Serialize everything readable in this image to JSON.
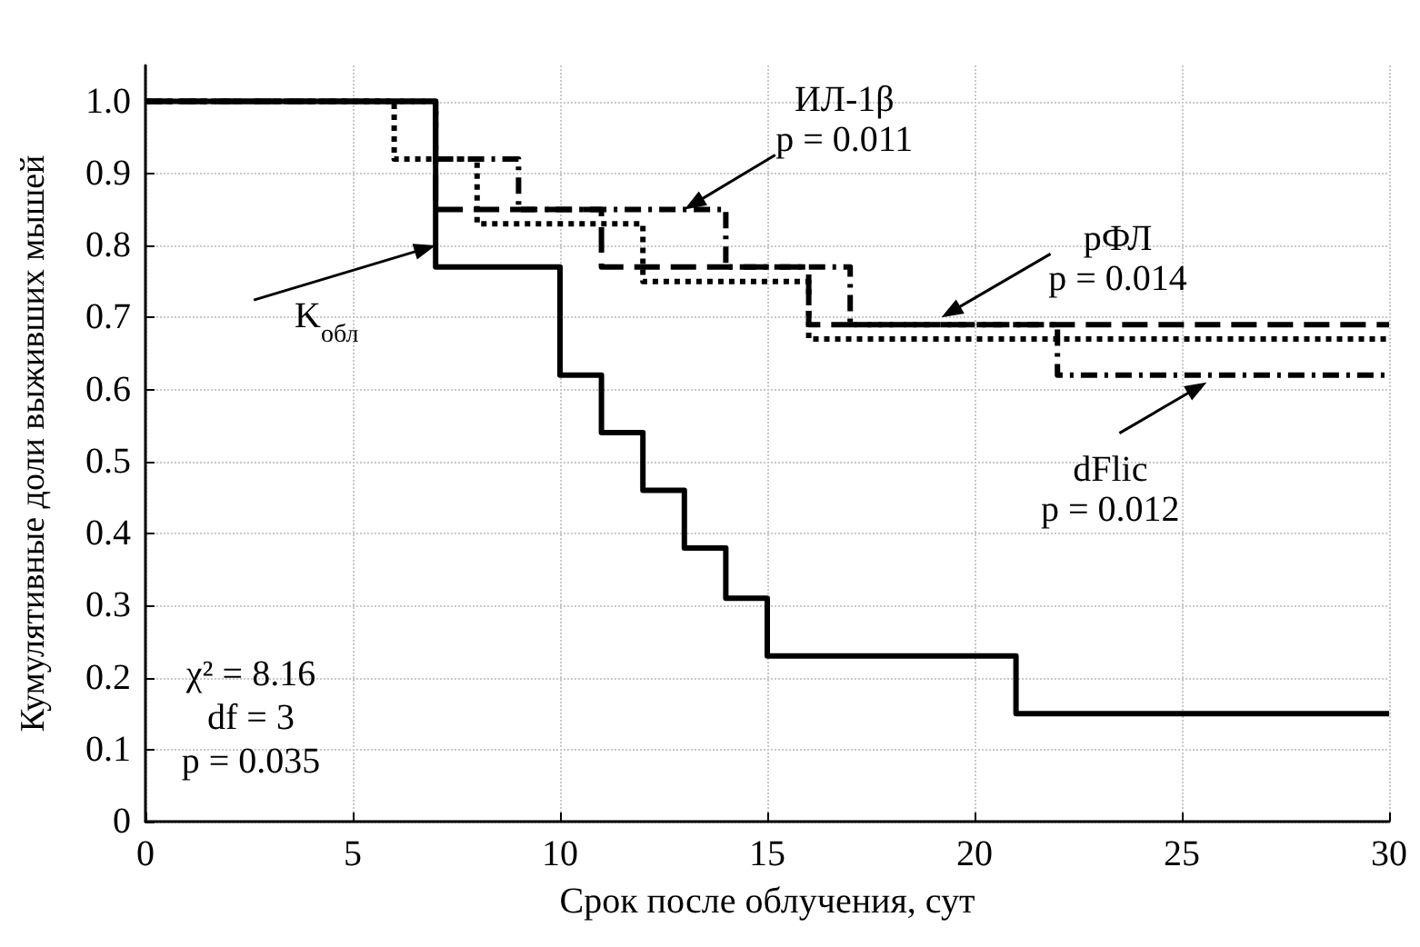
{
  "chart_data": {
    "type": "step",
    "xlabel": "Срок после облучения, сут",
    "ylabel": "Кумулятивные доли выживших мышей",
    "xlim": [
      0,
      30
    ],
    "xticks": [
      0,
      5,
      10,
      15,
      20,
      25,
      30
    ],
    "ylim": [
      0,
      1.05
    ],
    "yticks": [
      0,
      0.1,
      0.2,
      0.3,
      0.4,
      0.5,
      0.6,
      0.7,
      0.8,
      0.9,
      {
        "value": 1,
        "label": "1.0"
      }
    ],
    "grid": true,
    "marker": "none",
    "series": [
      {
        "color": "#000000",
        "line_style": "solid",
        "x": [
          0,
          7,
          10,
          11,
          12,
          13,
          14,
          15,
          21,
          30
        ],
        "values": [
          1,
          0.77,
          0.62,
          0.54,
          0.46,
          0.38,
          0.31,
          0.23,
          0.15,
          0.15
        ]
      },
      {
        "color": "#000000",
        "line_style": "dotted",
        "x": [
          0,
          6,
          8,
          12,
          16,
          30
        ],
        "values": [
          1,
          0.92,
          0.83,
          0.75,
          0.67,
          0.67
        ]
      },
      {
        "color": "#000000",
        "line_style": "dashed",
        "x": [
          0,
          7,
          11,
          16,
          30
        ],
        "values": [
          1,
          0.85,
          0.77,
          0.69,
          0.69
        ]
      },
      {
        "color": "#000000",
        "line_style": "dashed",
        "x": [
          0,
          7,
          9,
          14,
          17,
          22,
          30
        ],
        "values": [
          1,
          0.92,
          0.85,
          0.77,
          0.69,
          0.62,
          0.62
        ]
      }
    ],
    "annotations": [
      {
        "text": "ИЛ-1β\np = 0.011",
        "x": 13,
        "y": 0.85
      },
      {
        "text": "рФЛ\np = 0.014",
        "x": 19.2,
        "y": 0.7
      },
      {
        "text": "dFlic\np = 0.012",
        "x": 25.6,
        "y": 0.61
      },
      {
        "text": "K$_{обл}$",
        "x": 7,
        "y": 0.8
      },
      "χ² = 8.16\ndf = 3\np = 0.035"
    ]
  }
}
